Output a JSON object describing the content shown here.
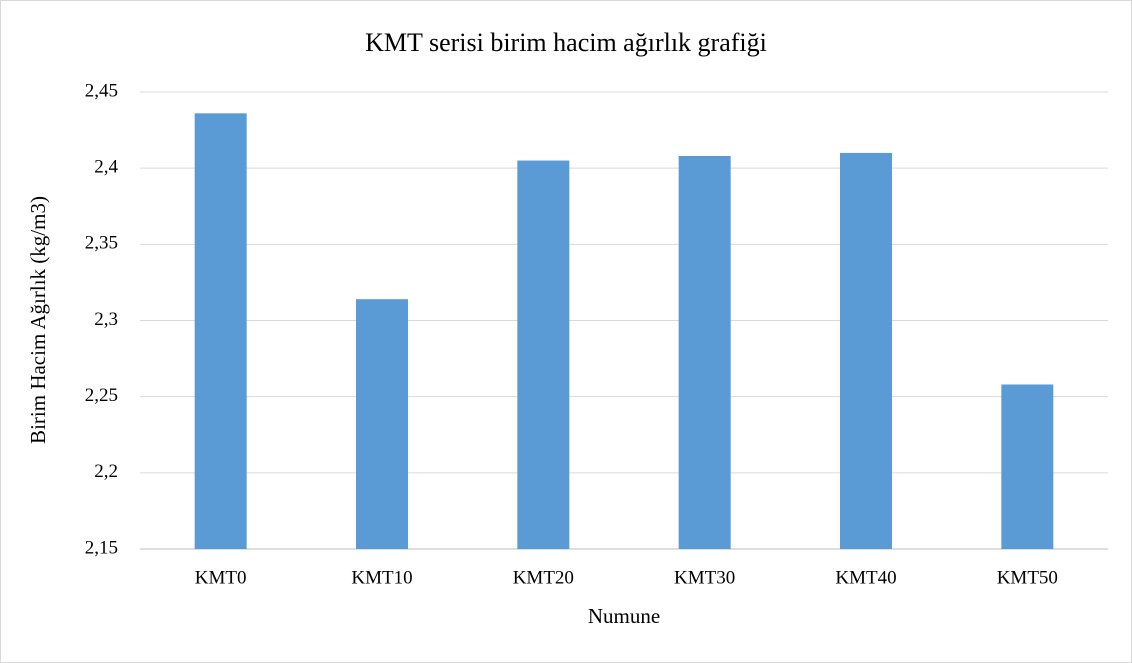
{
  "chart_data": {
    "type": "bar",
    "title": "KMT serisi birim hacim ağırlık grafiği",
    "x_label": "Numune",
    "y_label": "Birim Hacim Ağırlık (kg/m3)",
    "categories": [
      "KMT0",
      "KMT10",
      "KMT20",
      "KMT30",
      "KMT40",
      "KMT50"
    ],
    "values": [
      2.436,
      2.314,
      2.405,
      2.408,
      2.41,
      2.258
    ],
    "color": "#5b9bd5",
    "ylim": [
      2.15,
      2.45
    ],
    "yticks": [
      {
        "value": 2.15,
        "label": "2,15"
      },
      {
        "value": 2.2,
        "label": "2,2"
      },
      {
        "value": 2.25,
        "label": "2,25"
      },
      {
        "value": 2.3,
        "label": "2,3"
      },
      {
        "value": 2.35,
        "label": "2,35"
      },
      {
        "value": 2.4,
        "label": "2,4"
      },
      {
        "value": 2.45,
        "label": "2,45"
      }
    ],
    "grid": true
  }
}
